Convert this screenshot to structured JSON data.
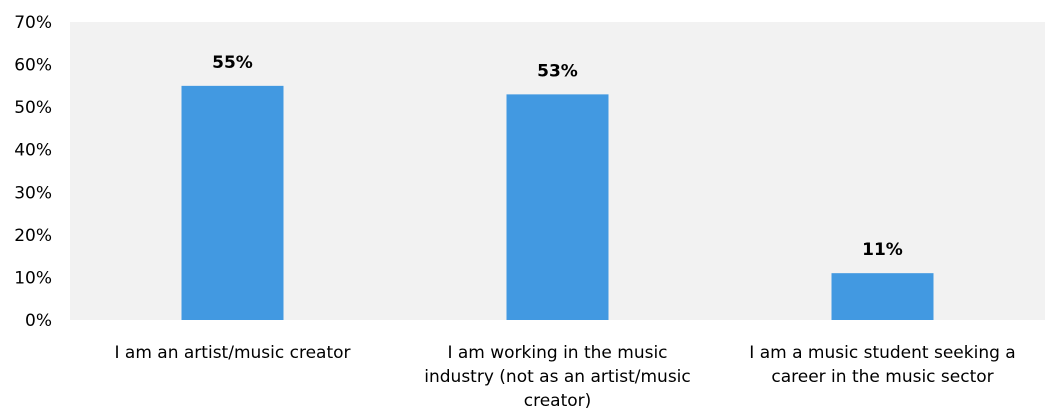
{
  "chart_data": {
    "type": "bar",
    "title": "",
    "xlabel": "",
    "ylabel": "",
    "categories": [
      [
        "I am an artist/music creator"
      ],
      [
        "I am working in the music",
        "industry (not as an artist/music",
        "creator)"
      ],
      [
        "I am a music student seeking a",
        "career in the music sector"
      ]
    ],
    "values": [
      55,
      53,
      11
    ],
    "data_labels": [
      "55%",
      "53%",
      "11%"
    ],
    "ylim": [
      0,
      70
    ],
    "yticks": [
      0,
      10,
      20,
      30,
      40,
      50,
      60,
      70
    ],
    "ytick_labels": [
      "0%",
      "10%",
      "20%",
      "30%",
      "40%",
      "50%",
      "60%",
      "70%"
    ],
    "grid": false,
    "legend": "none",
    "colors": {
      "bar": "#4299e1",
      "plot_background": "#f2f2f2",
      "text": "#000000"
    }
  }
}
